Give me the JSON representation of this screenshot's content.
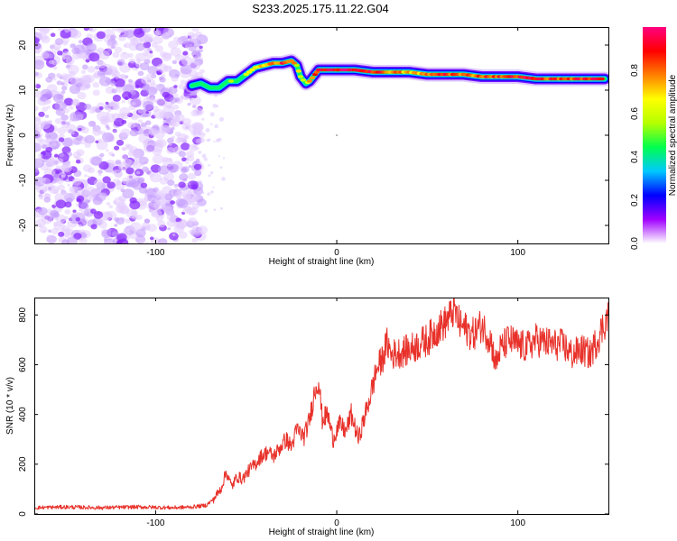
{
  "figure_title": "S233.2025.175.11.22.G04",
  "chart_data": [
    {
      "type": "heatmap",
      "xlabel": "Height of straight line (km)",
      "ylabel": "Frequency (Hz)",
      "xlim": [
        -167,
        150
      ],
      "ylim": [
        -24,
        24
      ],
      "xticks": [
        -100,
        0,
        100
      ],
      "yticks": [
        -20,
        -10,
        0,
        10,
        20
      ],
      "colorbar": {
        "label": "Normalized spectral amplitude",
        "range": [
          0,
          1
        ],
        "ticks": [
          0.0,
          0.2,
          0.4,
          0.6,
          0.8
        ],
        "colors": [
          "#ffffff",
          "#a000ff",
          "#0000ff",
          "#00c8ff",
          "#00ff50",
          "#b4ff00",
          "#ffff00",
          "#ff8000",
          "#ff0000",
          "#ff0080"
        ]
      },
      "noise_region": {
        "x_range": [
          -167,
          -77
        ],
        "freq_range": [
          -24,
          24
        ]
      },
      "signal_ridge": {
        "x": [
          -80,
          -75,
          -70,
          -65,
          -60,
          -55,
          -50,
          -45,
          -40,
          -35,
          -30,
          -25,
          -22,
          -20,
          -17,
          -15,
          -12,
          -10,
          -5,
          0,
          10,
          20,
          30,
          40,
          50,
          60,
          70,
          80,
          90,
          100,
          110,
          120,
          130,
          140,
          148
        ],
        "freq": [
          11,
          11.5,
          10.5,
          10.5,
          12,
          12,
          13.5,
          15,
          15.5,
          16,
          16,
          16.5,
          15.5,
          13,
          11.5,
          12,
          13.5,
          14.5,
          14.5,
          14.5,
          14.5,
          14,
          14,
          14,
          13.5,
          13.5,
          13.5,
          13,
          13,
          13,
          12.5,
          12.5,
          12.5,
          12.5,
          12.5
        ],
        "amplitude": [
          0.3,
          0.35,
          0.35,
          0.45,
          0.5,
          0.5,
          0.55,
          0.65,
          0.75,
          0.8,
          0.85,
          0.75,
          0.65,
          0.6,
          0.55,
          0.7,
          0.8,
          0.85,
          0.9,
          0.95,
          0.95,
          0.9,
          0.8,
          0.7,
          0.75,
          0.9,
          0.75,
          0.85,
          0.85,
          0.9,
          0.9,
          0.85,
          0.85,
          0.9,
          0.85
        ]
      }
    },
    {
      "type": "line",
      "xlabel": "Height of straight line (km)",
      "ylabel": "SNR (10 * v/v)",
      "xlim": [
        -167,
        150
      ],
      "ylim": [
        0,
        870
      ],
      "xticks": [
        -100,
        0,
        100
      ],
      "yticks": [
        0,
        200,
        400,
        600,
        800
      ],
      "series": [
        {
          "color": "#e8312a",
          "x": [
            -167,
            -150,
            -130,
            -110,
            -90,
            -80,
            -72,
            -68,
            -64,
            -61,
            -58,
            -55,
            -52,
            -48,
            -45,
            -42,
            -38,
            -35,
            -32,
            -28,
            -25,
            -22,
            -18,
            -15,
            -12,
            -10,
            -8,
            -5,
            -2,
            0,
            2,
            5,
            8,
            12,
            15,
            18,
            20,
            22,
            25,
            28,
            30,
            35,
            40,
            45,
            50,
            55,
            60,
            63,
            65,
            68,
            72,
            75,
            80,
            85,
            88,
            90,
            95,
            100,
            105,
            110,
            115,
            120,
            125,
            130,
            135,
            140,
            145,
            150
          ],
          "y": [
            25,
            28,
            25,
            28,
            25,
            28,
            35,
            60,
            100,
            170,
            110,
            150,
            140,
            180,
            200,
            230,
            250,
            230,
            260,
            300,
            270,
            340,
            310,
            380,
            500,
            540,
            380,
            400,
            300,
            340,
            360,
            330,
            400,
            300,
            380,
            460,
            520,
            580,
            620,
            690,
            640,
            650,
            660,
            680,
            700,
            740,
            770,
            800,
            820,
            760,
            740,
            720,
            760,
            700,
            600,
            660,
            700,
            680,
            670,
            700,
            690,
            680,
            680,
            640,
            660,
            640,
            720,
            800
          ]
        }
      ]
    }
  ]
}
